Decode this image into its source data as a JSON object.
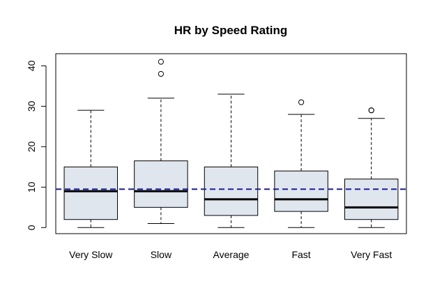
{
  "chart_data": {
    "type": "box",
    "title": "HR by Speed Rating",
    "xlabel": "",
    "ylabel": "",
    "ylim": [
      -1.5,
      43
    ],
    "yticks": [
      0,
      10,
      20,
      30,
      40
    ],
    "categories": [
      "Very Slow",
      "Slow",
      "Average",
      "Fast",
      "Very Fast"
    ],
    "boxes": [
      {
        "category": "Very Slow",
        "whisker_low": 0,
        "q1": 2,
        "median": 9,
        "q3": 15,
        "whisker_high": 29,
        "outliers": []
      },
      {
        "category": "Slow",
        "whisker_low": 1,
        "q1": 5,
        "median": 9,
        "q3": 16.5,
        "whisker_high": 32,
        "outliers": [
          38,
          41
        ]
      },
      {
        "category": "Average",
        "whisker_low": 0,
        "q1": 3,
        "median": 7,
        "q3": 15,
        "whisker_high": 33,
        "outliers": []
      },
      {
        "category": "Fast",
        "whisker_low": 0,
        "q1": 4,
        "median": 7,
        "q3": 14,
        "whisker_high": 28,
        "outliers": [
          31
        ]
      },
      {
        "category": "Very Fast",
        "whisker_low": 0,
        "q1": 2,
        "median": 5,
        "q3": 12,
        "whisker_high": 27,
        "outliers": [
          29,
          29
        ]
      }
    ],
    "reference_line": {
      "y": 9.5,
      "color": "#1a1aaa",
      "style": "dashed"
    },
    "box_fill": "#dfe6ee",
    "grid": false,
    "legend": "none"
  }
}
